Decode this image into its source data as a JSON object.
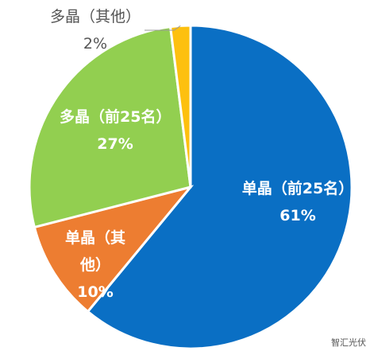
{
  "chart_data": {
    "type": "pie",
    "categories": [
      "单晶（前25名）",
      "单晶（其他）",
      "多晶（前25名）",
      "多晶（其他）"
    ],
    "values": [
      61,
      10,
      27,
      2
    ],
    "value_labels": [
      "61%",
      "10%",
      "27%",
      "2%"
    ],
    "colors": [
      "#0a6fc4",
      "#ed7d31",
      "#92cf50",
      "#fdc00f"
    ],
    "start_angle": 0,
    "direction": "clockwise"
  },
  "watermark": "智汇光伏"
}
